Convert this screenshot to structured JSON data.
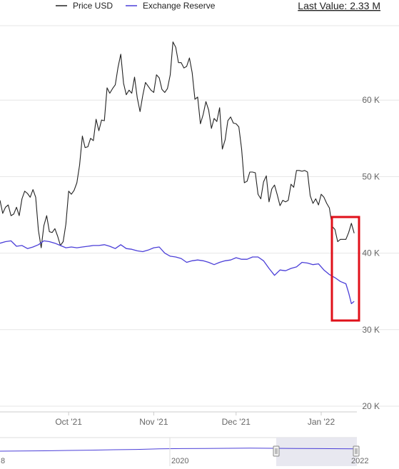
{
  "chart_data": {
    "type": "line",
    "legend": [
      "Price USD",
      "Exchange Reserve"
    ],
    "last_value_text": "Last Value: 2.33 M",
    "x_ticks": [
      "Oct '21",
      "Nov '21",
      "Dec '21",
      "Jan '22"
    ],
    "x_tick_dates": [
      "2021-10-01",
      "2021-11-01",
      "2021-12-01",
      "2022-01-01"
    ],
    "y_ticks": [
      "20 K",
      "30 K",
      "40 K",
      "50 K",
      "60 K"
    ],
    "y_tick_values": [
      20000,
      30000,
      40000,
      50000,
      60000
    ],
    "ylim": [
      20000,
      67000
    ],
    "navigator": {
      "labels": [
        "2020",
        "2022"
      ],
      "left_edge_label": "8"
    },
    "highlight": {
      "color": "#e0101a"
    },
    "series": [
      {
        "name": "Price USD",
        "color": "#222222",
        "points": [
          [
            "2021-09-06",
            46900
          ],
          [
            "2021-09-07",
            45200
          ],
          [
            "2021-09-08",
            46000
          ],
          [
            "2021-09-09",
            46300
          ],
          [
            "2021-09-10",
            44900
          ],
          [
            "2021-09-11",
            45100
          ],
          [
            "2021-09-12",
            46000
          ],
          [
            "2021-09-13",
            44900
          ],
          [
            "2021-09-14",
            47100
          ],
          [
            "2021-09-15",
            48100
          ],
          [
            "2021-09-16",
            47800
          ],
          [
            "2021-09-17",
            47300
          ],
          [
            "2021-09-18",
            48300
          ],
          [
            "2021-09-19",
            47300
          ],
          [
            "2021-09-20",
            43000
          ],
          [
            "2021-09-21",
            40700
          ],
          [
            "2021-09-22",
            43600
          ],
          [
            "2021-09-23",
            44900
          ],
          [
            "2021-09-24",
            42800
          ],
          [
            "2021-09-25",
            42700
          ],
          [
            "2021-09-26",
            43200
          ],
          [
            "2021-09-27",
            42200
          ],
          [
            "2021-09-28",
            41000
          ],
          [
            "2021-09-29",
            41500
          ],
          [
            "2021-09-30",
            43800
          ],
          [
            "2021-10-01",
            48100
          ],
          [
            "2021-10-02",
            47700
          ],
          [
            "2021-10-03",
            48200
          ],
          [
            "2021-10-04",
            49200
          ],
          [
            "2021-10-05",
            51500
          ],
          [
            "2021-10-06",
            55300
          ],
          [
            "2021-10-07",
            53800
          ],
          [
            "2021-10-08",
            53900
          ],
          [
            "2021-10-09",
            55000
          ],
          [
            "2021-10-10",
            54700
          ],
          [
            "2021-10-11",
            57500
          ],
          [
            "2021-10-12",
            56000
          ],
          [
            "2021-10-13",
            57400
          ],
          [
            "2021-10-14",
            57300
          ],
          [
            "2021-10-15",
            61600
          ],
          [
            "2021-10-16",
            60900
          ],
          [
            "2021-10-17",
            61500
          ],
          [
            "2021-10-18",
            62000
          ],
          [
            "2021-10-19",
            64300
          ],
          [
            "2021-10-20",
            66000
          ],
          [
            "2021-10-21",
            62200
          ],
          [
            "2021-10-22",
            60700
          ],
          [
            "2021-10-23",
            61300
          ],
          [
            "2021-10-24",
            60900
          ],
          [
            "2021-10-25",
            63000
          ],
          [
            "2021-10-26",
            60300
          ],
          [
            "2021-10-27",
            58500
          ],
          [
            "2021-10-28",
            60600
          ],
          [
            "2021-10-29",
            62300
          ],
          [
            "2021-10-30",
            61800
          ],
          [
            "2021-10-31",
            61300
          ],
          [
            "2021-11-01",
            61000
          ],
          [
            "2021-11-02",
            63300
          ],
          [
            "2021-11-03",
            62900
          ],
          [
            "2021-11-04",
            61400
          ],
          [
            "2021-11-05",
            61000
          ],
          [
            "2021-11-06",
            61500
          ],
          [
            "2021-11-07",
            63300
          ],
          [
            "2021-11-08",
            67600
          ],
          [
            "2021-11-09",
            66900
          ],
          [
            "2021-11-10",
            64900
          ],
          [
            "2021-11-11",
            64900
          ],
          [
            "2021-11-12",
            64200
          ],
          [
            "2021-11-13",
            64400
          ],
          [
            "2021-11-14",
            65500
          ],
          [
            "2021-11-15",
            63600
          ],
          [
            "2021-11-16",
            60100
          ],
          [
            "2021-11-17",
            60400
          ],
          [
            "2021-11-18",
            56900
          ],
          [
            "2021-11-19",
            58100
          ],
          [
            "2021-11-20",
            59800
          ],
          [
            "2021-11-21",
            58700
          ],
          [
            "2021-11-22",
            56300
          ],
          [
            "2021-11-23",
            57600
          ],
          [
            "2021-11-24",
            57200
          ],
          [
            "2021-11-25",
            59000
          ],
          [
            "2021-11-26",
            53600
          ],
          [
            "2021-11-27",
            54800
          ],
          [
            "2021-11-28",
            57300
          ],
          [
            "2021-11-29",
            57800
          ],
          [
            "2021-11-30",
            57000
          ],
          [
            "2021-12-01",
            56900
          ],
          [
            "2021-12-02",
            56500
          ],
          [
            "2021-12-03",
            53600
          ],
          [
            "2021-12-04",
            49200
          ],
          [
            "2021-12-05",
            49400
          ],
          [
            "2021-12-06",
            50600
          ],
          [
            "2021-12-07",
            50600
          ],
          [
            "2021-12-08",
            50500
          ],
          [
            "2021-12-09",
            47700
          ],
          [
            "2021-12-10",
            47100
          ],
          [
            "2021-12-11",
            49300
          ],
          [
            "2021-12-12",
            50100
          ],
          [
            "2021-12-13",
            46700
          ],
          [
            "2021-12-14",
            48400
          ],
          [
            "2021-12-15",
            48900
          ],
          [
            "2021-12-16",
            47600
          ],
          [
            "2021-12-17",
            46200
          ],
          [
            "2021-12-18",
            46900
          ],
          [
            "2021-12-19",
            46700
          ],
          [
            "2021-12-20",
            46900
          ],
          [
            "2021-12-21",
            49000
          ],
          [
            "2021-12-22",
            48600
          ],
          [
            "2021-12-23",
            50800
          ],
          [
            "2021-12-24",
            50800
          ],
          [
            "2021-12-25",
            50700
          ],
          [
            "2021-12-26",
            50800
          ],
          [
            "2021-12-27",
            50600
          ],
          [
            "2021-12-28",
            47500
          ],
          [
            "2021-12-29",
            46500
          ],
          [
            "2021-12-30",
            47100
          ],
          [
            "2021-12-31",
            46300
          ],
          [
            "2022-01-01",
            47700
          ],
          [
            "2022-01-02",
            47300
          ],
          [
            "2022-01-03",
            46500
          ],
          [
            "2022-01-04",
            45900
          ],
          [
            "2022-01-05",
            43500
          ],
          [
            "2022-01-06",
            43100
          ],
          [
            "2022-01-07",
            41500
          ],
          [
            "2022-01-08",
            41800
          ],
          [
            "2022-01-09",
            41800
          ],
          [
            "2022-01-10",
            41800
          ],
          [
            "2022-01-11",
            42700
          ],
          [
            "2022-01-12",
            43900
          ],
          [
            "2022-01-13",
            42600
          ]
        ]
      },
      {
        "name": "Exchange Reserve",
        "color": "#4b3fd8",
        "points": [
          [
            "2021-09-06",
            41300
          ],
          [
            "2021-09-08",
            41500
          ],
          [
            "2021-09-10",
            41600
          ],
          [
            "2021-09-12",
            40900
          ],
          [
            "2021-09-14",
            41000
          ],
          [
            "2021-09-16",
            40600
          ],
          [
            "2021-09-18",
            40800
          ],
          [
            "2021-09-20",
            41100
          ],
          [
            "2021-09-22",
            41600
          ],
          [
            "2021-09-24",
            41500
          ],
          [
            "2021-09-26",
            41300
          ],
          [
            "2021-09-28",
            41000
          ],
          [
            "2021-09-30",
            40700
          ],
          [
            "2021-10-02",
            40800
          ],
          [
            "2021-10-04",
            40700
          ],
          [
            "2021-10-06",
            40800
          ],
          [
            "2021-10-08",
            40900
          ],
          [
            "2021-10-10",
            41000
          ],
          [
            "2021-10-12",
            41000
          ],
          [
            "2021-10-14",
            41100
          ],
          [
            "2021-10-16",
            40900
          ],
          [
            "2021-10-18",
            40600
          ],
          [
            "2021-10-20",
            41100
          ],
          [
            "2021-10-22",
            40600
          ],
          [
            "2021-10-24",
            40500
          ],
          [
            "2021-10-26",
            40300
          ],
          [
            "2021-10-28",
            40200
          ],
          [
            "2021-10-30",
            40400
          ],
          [
            "2021-11-01",
            40700
          ],
          [
            "2021-11-03",
            40800
          ],
          [
            "2021-11-05",
            40000
          ],
          [
            "2021-11-07",
            39600
          ],
          [
            "2021-11-09",
            39500
          ],
          [
            "2021-11-11",
            39300
          ],
          [
            "2021-11-13",
            38800
          ],
          [
            "2021-11-15",
            39000
          ],
          [
            "2021-11-17",
            39100
          ],
          [
            "2021-11-19",
            39000
          ],
          [
            "2021-11-21",
            38800
          ],
          [
            "2021-11-23",
            38500
          ],
          [
            "2021-11-25",
            38800
          ],
          [
            "2021-11-27",
            39000
          ],
          [
            "2021-11-29",
            39100
          ],
          [
            "2021-12-01",
            39400
          ],
          [
            "2021-12-03",
            39200
          ],
          [
            "2021-12-05",
            39200
          ],
          [
            "2021-12-07",
            39500
          ],
          [
            "2021-12-09",
            39500
          ],
          [
            "2021-12-11",
            39000
          ],
          [
            "2021-12-13",
            38000
          ],
          [
            "2021-12-15",
            37100
          ],
          [
            "2021-12-17",
            37800
          ],
          [
            "2021-12-19",
            37700
          ],
          [
            "2021-12-21",
            38000
          ],
          [
            "2021-12-23",
            38200
          ],
          [
            "2021-12-25",
            38800
          ],
          [
            "2021-12-27",
            38700
          ],
          [
            "2021-12-29",
            38500
          ],
          [
            "2021-12-31",
            38600
          ],
          [
            "2022-01-02",
            37800
          ],
          [
            "2022-01-04",
            37200
          ],
          [
            "2022-01-06",
            36800
          ],
          [
            "2022-01-08",
            36300
          ],
          [
            "2022-01-10",
            36000
          ],
          [
            "2022-01-11",
            34800
          ],
          [
            "2022-01-12",
            33400
          ],
          [
            "2022-01-13",
            33700
          ]
        ]
      }
    ]
  },
  "navigator_series": [
    [
      "2019-06-01",
      0.2
    ],
    [
      "2019-08-01",
      0.22
    ],
    [
      "2019-10-01",
      0.25
    ],
    [
      "2019-12-01",
      0.3
    ],
    [
      "2020-02-01",
      0.34
    ],
    [
      "2020-04-01",
      0.4
    ],
    [
      "2020-06-01",
      0.44
    ],
    [
      "2020-08-01",
      0.52
    ],
    [
      "2020-10-01",
      0.56
    ],
    [
      "2020-12-01",
      0.58
    ],
    [
      "2021-02-01",
      0.6
    ],
    [
      "2021-04-01",
      0.62
    ],
    [
      "2021-06-01",
      0.6
    ],
    [
      "2021-08-01",
      0.58
    ],
    [
      "2021-10-01",
      0.56
    ],
    [
      "2021-12-01",
      0.54
    ],
    [
      "2022-01-13",
      0.52
    ]
  ]
}
